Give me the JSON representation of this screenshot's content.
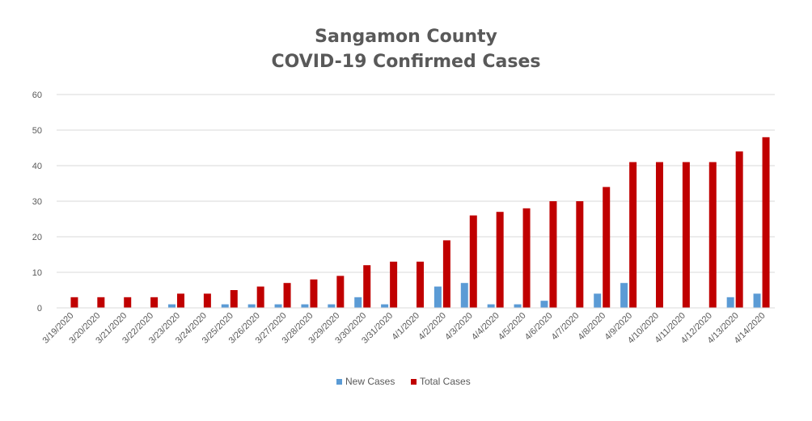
{
  "chart_data": {
    "type": "bar",
    "title": "Sangamon County",
    "subtitle": "COVID-19 Confirmed Cases",
    "xlabel": "",
    "ylabel": "",
    "ylim": [
      0,
      60
    ],
    "yticks": [
      0,
      10,
      20,
      30,
      40,
      50,
      60
    ],
    "grid": true,
    "legend_position": "bottom",
    "categories": [
      "3/19/2020",
      "3/20/2020",
      "3/21/2020",
      "3/22/2020",
      "3/23/2020",
      "3/24/2020",
      "3/25/2020",
      "3/26/2020",
      "3/27/2020",
      "3/28/2020",
      "3/29/2020",
      "3/30/2020",
      "3/31/2020",
      "4/1/2020",
      "4/2/2020",
      "4/3/2020",
      "4/4/2020",
      "4/5/2020",
      "4/6/2020",
      "4/7/2020",
      "4/8/2020",
      "4/9/2020",
      "4/10/2020",
      "4/11/2020",
      "4/12/2020",
      "4/13/2020",
      "4/14/2020"
    ],
    "series": [
      {
        "name": "New Cases",
        "color": "#5b9bd5",
        "values": [
          0,
          0,
          0,
          0,
          1,
          0,
          1,
          1,
          1,
          1,
          1,
          3,
          1,
          0,
          6,
          7,
          1,
          1,
          2,
          0,
          4,
          7,
          0,
          0,
          0,
          3,
          4
        ]
      },
      {
        "name": "Total Cases",
        "color": "#c00000",
        "values": [
          3,
          3,
          3,
          3,
          4,
          4,
          5,
          6,
          7,
          8,
          9,
          12,
          13,
          13,
          19,
          26,
          27,
          28,
          30,
          30,
          34,
          41,
          41,
          41,
          41,
          44,
          48
        ]
      }
    ]
  }
}
